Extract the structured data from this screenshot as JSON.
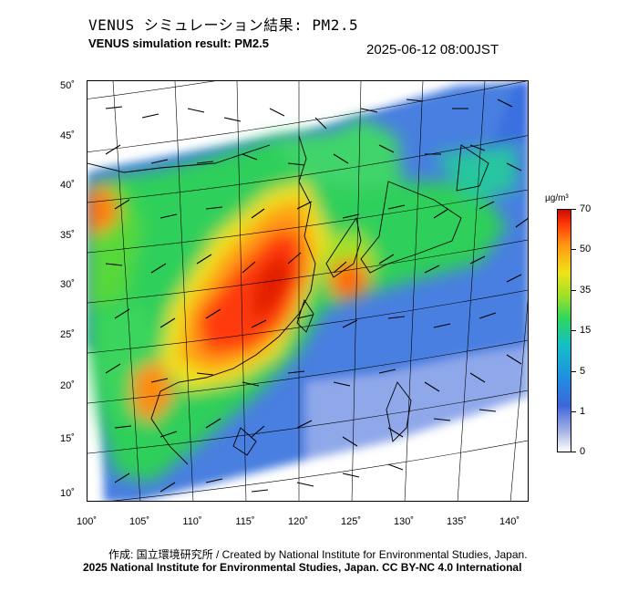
{
  "header": {
    "title_ja": "VENUS シミュレーション結果: PM2.5",
    "title_en": "VENUS simulation result: PM2.5",
    "timestamp": "2025-06-12 08:00JST"
  },
  "map": {
    "lat_labels": [
      "50˚",
      "45˚",
      "40˚",
      "35˚",
      "30˚",
      "25˚",
      "20˚",
      "15˚",
      "10˚"
    ],
    "lon_labels": [
      "100˚",
      "105˚",
      "110˚",
      "115˚",
      "120˚",
      "125˚",
      "130˚",
      "135˚",
      "140˚"
    ],
    "background_color": "#ffffff",
    "land_outline_color": "#000000"
  },
  "legend": {
    "unit": "µg/m³",
    "labels": [
      "70",
      "50",
      "35",
      "15",
      "5",
      "1",
      "0"
    ],
    "colors": [
      "#ffffff",
      "#a9b7e6",
      "#3d66d9",
      "#1f8de0",
      "#14bfc6",
      "#2fd65b",
      "#9be02a",
      "#f0e21a",
      "#ff9b12",
      "#ff3a0a",
      "#cc0b00"
    ]
  },
  "footer": {
    "credit_line": "作成: 国立環境研究所 / Created by National Institute for Environmental Studies, Japan.",
    "copyright_line": "2025 National Institute for Environmental Studies, Japan. CC BY-NC 4.0 International"
  }
}
